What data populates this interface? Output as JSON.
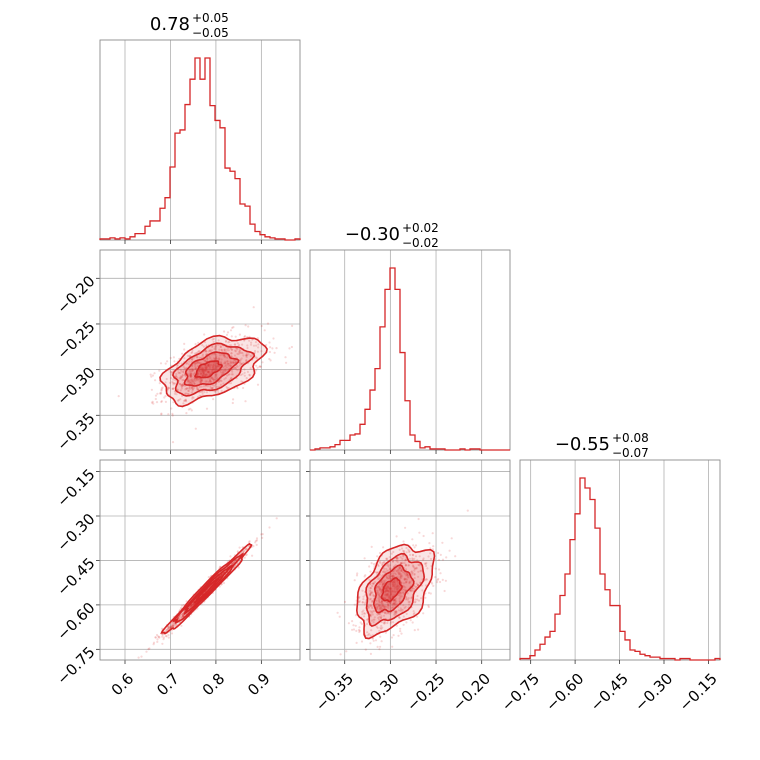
{
  "chart_data": {
    "type": "corner",
    "color": "#d62728",
    "grid": true,
    "parameters": [
      {
        "title": {
          "median": "0.78",
          "plus": "+0.05",
          "minus": "−0.05"
        },
        "range": [
          0.545,
          0.985
        ],
        "ticks": [
          {
            "v": 0.6,
            "label": "0.6"
          },
          {
            "v": 0.7,
            "label": "0.7"
          },
          {
            "v": 0.8,
            "label": "0.8"
          },
          {
            "v": 0.9,
            "label": "0.9"
          }
        ],
        "hist": {
          "edges": [
            0.545,
            0.985
          ],
          "counts": [
            1,
            1,
            2,
            1,
            2,
            1,
            3,
            6,
            6,
            13,
            18,
            18,
            30,
            40,
            69,
            101,
            104,
            128,
            152,
            172,
            152,
            172,
            127,
            113,
            106,
            68,
            65,
            58,
            34,
            32,
            15,
            8,
            5,
            3,
            2,
            1,
            1,
            0,
            0,
            1
          ]
        }
      },
      {
        "title": {
          "median": "−0.30",
          "plus": "+0.02",
          "minus": "−0.02"
        },
        "range": [
          -0.388,
          -0.169
        ],
        "ticks": [
          {
            "v": -0.35,
            "label": "−0.35"
          },
          {
            "v": -0.3,
            "label": "−0.30"
          },
          {
            "v": -0.25,
            "label": "−0.25"
          },
          {
            "v": -0.2,
            "label": "−0.20"
          }
        ],
        "hist": {
          "edges": [
            -0.388,
            -0.169
          ],
          "counts": [
            0,
            1,
            2,
            2,
            3,
            5,
            9,
            9,
            14,
            15,
            24,
            38,
            56,
            76,
            115,
            150,
            170,
            150,
            91,
            46,
            14,
            8,
            2,
            3,
            1,
            1,
            1,
            0,
            0,
            0,
            1,
            0,
            1,
            1,
            0,
            0,
            0,
            0,
            0,
            0
          ]
        }
      },
      {
        "title": {
          "median": "−0.55",
          "plus": "+0.08",
          "minus": "−0.07"
        },
        "range": [
          -0.786,
          -0.111
        ],
        "ticks": [
          {
            "v": -0.75,
            "label": "−0.75"
          },
          {
            "v": -0.6,
            "label": "−0.60"
          },
          {
            "v": -0.45,
            "label": "−0.45"
          },
          {
            "v": -0.3,
            "label": "−0.30"
          },
          {
            "v": -0.15,
            "label": "−0.15"
          }
        ],
        "hist": {
          "edges": [
            -0.786,
            -0.111
          ],
          "counts": [
            1,
            1,
            3,
            7,
            11,
            16,
            20,
            32,
            45,
            60,
            84,
            102,
            127,
            120,
            112,
            92,
            60,
            49,
            38,
            38,
            20,
            14,
            7,
            6,
            4,
            3,
            2,
            2,
            1,
            1,
            1,
            0,
            1,
            1,
            0,
            0,
            0,
            0,
            0,
            1
          ]
        }
      }
    ],
    "pairs": [
      {
        "x": 0,
        "y": 1,
        "center": [
          0.78,
          -0.3
        ],
        "sd": [
          0.048,
          0.018
        ],
        "rho": 0.5,
        "skew_x": 0.6
      },
      {
        "x": 0,
        "y": 2,
        "center": [
          0.78,
          -0.55
        ],
        "sd": [
          0.048,
          0.075
        ],
        "rho": 0.985,
        "skew_x": 0.0
      },
      {
        "x": 1,
        "y": 2,
        "center": [
          -0.3,
          -0.55
        ],
        "sd": [
          0.018,
          0.075
        ],
        "rho": 0.45,
        "skew_x": 0.6
      }
    ]
  }
}
